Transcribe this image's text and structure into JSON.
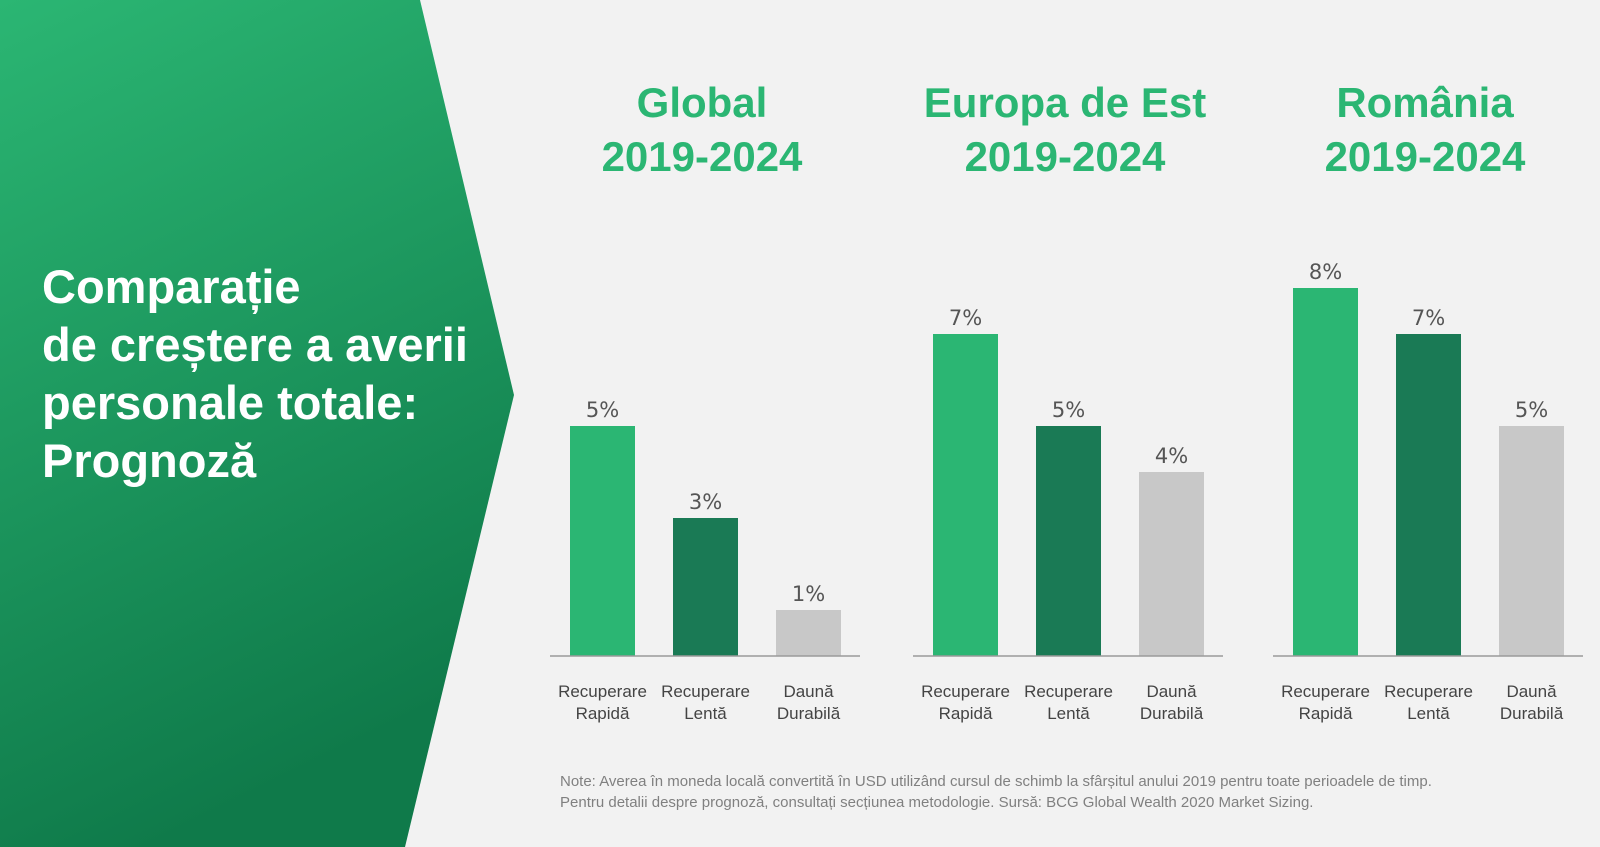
{
  "side_title": {
    "line1": "Comparație",
    "line2": "de creștere a averii",
    "line3": "personale totale:",
    "line4": "Prognoză"
  },
  "colors": {
    "light_green": "#2bb673",
    "dark_green": "#1a7a55",
    "grey": "#c8c8c8",
    "title_green": "#2bb673",
    "panel_green_top": "#2bb673",
    "panel_green_bottom": "#0f7a4a"
  },
  "chart_data": [
    {
      "type": "bar",
      "title": "Global",
      "subtitle": "2019-2024",
      "categories": [
        [
          "Recuperare",
          "Rapidă"
        ],
        [
          "Recuperare",
          "Lentă"
        ],
        [
          "Daună",
          "Durabilă"
        ]
      ],
      "values": [
        5,
        3,
        1
      ],
      "value_labels": [
        "5%",
        "3%",
        "1%"
      ],
      "ylim": [
        0,
        10
      ],
      "grid": false
    },
    {
      "type": "bar",
      "title": "Europa de Est",
      "subtitle": "2019-2024",
      "categories": [
        [
          "Recuperare",
          "Rapidă"
        ],
        [
          "Recuperare",
          "Lentă"
        ],
        [
          "Daună",
          "Durabilă"
        ]
      ],
      "values": [
        7,
        5,
        4
      ],
      "value_labels": [
        "7%",
        "5%",
        "4%"
      ],
      "ylim": [
        0,
        10
      ],
      "grid": false
    },
    {
      "type": "bar",
      "title": "România",
      "subtitle": "2019-2024",
      "categories": [
        [
          "Recuperare",
          "Rapidă"
        ],
        [
          "Recuperare",
          "Lentă"
        ],
        [
          "Daună",
          "Durabilă"
        ]
      ],
      "values": [
        8,
        7,
        5
      ],
      "value_labels": [
        "8%",
        "7%",
        "5%"
      ],
      "ylim": [
        0,
        10
      ],
      "grid": false
    }
  ],
  "note": {
    "line1": "Note: Averea în moneda locală convertită în USD utilizând cursul de schimb la sfârșitul anului 2019 pentru toate perioadele de timp.",
    "line2": "Pentru detalii despre prognoză, consultați secțiunea metodologie. Sursă: BCG Global Wealth 2020 Market Sizing."
  }
}
